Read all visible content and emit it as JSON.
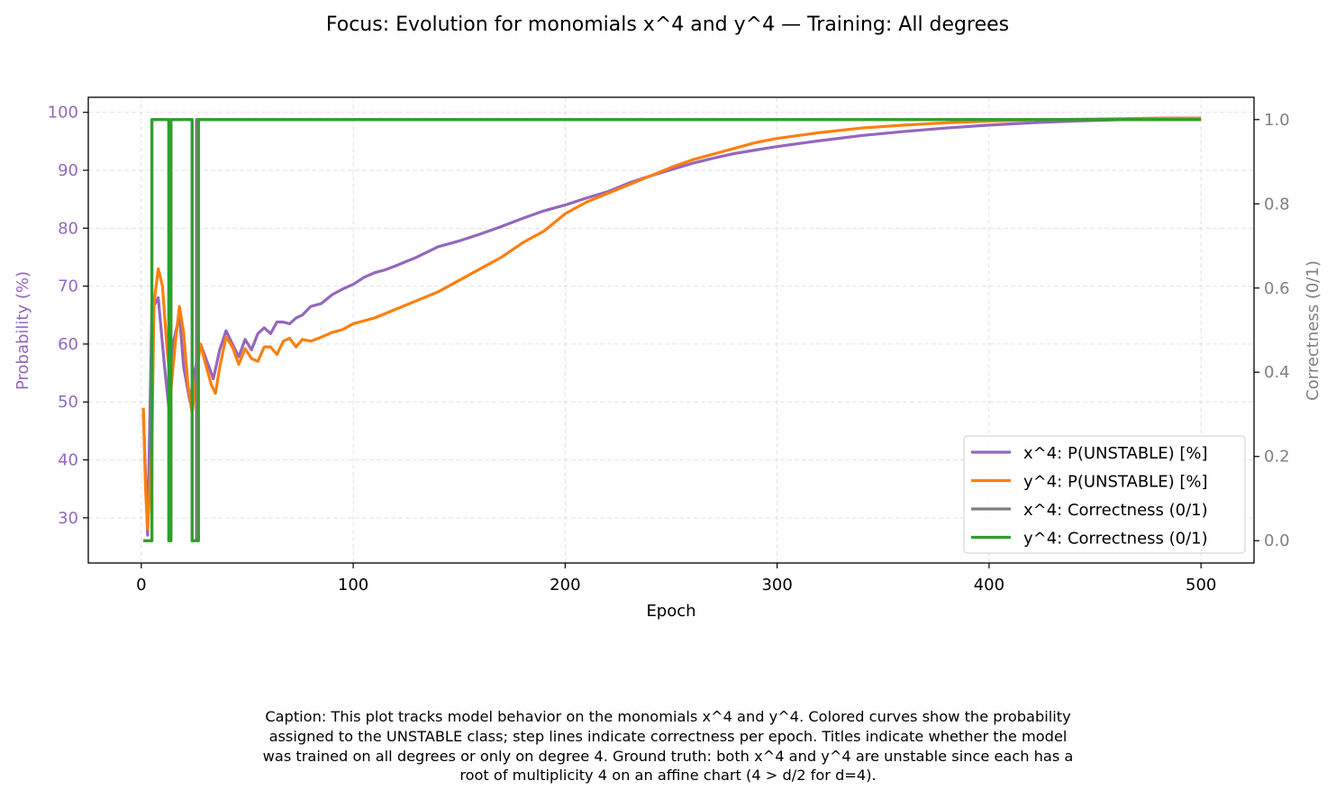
{
  "chart_data": {
    "type": "line",
    "title": "Focus: Evolution for monomials x^4 and y^4 — Training: All degrees",
    "xlabel": "Epoch",
    "ylabel_left": "Probability (%)",
    "ylabel_right": "Correctness (0/1)",
    "xlim": [
      -25,
      525
    ],
    "ylim_left": [
      22.2,
      102.6
    ],
    "ylim_right": [
      -0.053,
      1.053
    ],
    "x_ticks": [
      0,
      100,
      200,
      300,
      400,
      500
    ],
    "y_ticks_left": [
      30,
      40,
      50,
      60,
      70,
      80,
      90,
      100
    ],
    "y_ticks_right": [
      0.0,
      0.2,
      0.4,
      0.6,
      0.8,
      1.0
    ],
    "grid": true,
    "legend_position": "lower-right",
    "colors": {
      "x4_prob": "#9467bd",
      "y4_prob": "#ff7f0e",
      "x4_correct": "#7f7f7f",
      "y4_correct": "#2ca02c",
      "left_axis": "#9467bd",
      "right_axis": "#808080"
    },
    "series": [
      {
        "name": "x^4: P(UNSTABLE) [%]",
        "axis": "left",
        "color": "#9467bd",
        "x": [
          1,
          3,
          5,
          8,
          11,
          13,
          15,
          18,
          20,
          23,
          25,
          28,
          30,
          34,
          37,
          40,
          43,
          46,
          49,
          52,
          55,
          58,
          61,
          64,
          67,
          70,
          73,
          76,
          80,
          85,
          90,
          95,
          100,
          105,
          110,
          115,
          120,
          130,
          140,
          150,
          160,
          170,
          180,
          190,
          200,
          210,
          220,
          230,
          240,
          250,
          260,
          270,
          280,
          290,
          300,
          320,
          340,
          360,
          380,
          400,
          420,
          440,
          460,
          480,
          500
        ],
        "values": [
          48,
          27,
          66,
          68,
          56,
          49,
          60,
          65,
          56,
          50,
          55,
          60,
          58,
          54,
          59,
          62.3,
          60,
          57.8,
          60.8,
          59,
          61.8,
          62.8,
          61.8,
          63.8,
          63.8,
          63.5,
          64.5,
          65,
          66.5,
          67,
          68.5,
          69.5,
          70.3,
          71.5,
          72.3,
          72.8,
          73.5,
          75,
          76.8,
          77.8,
          79,
          80.3,
          81.7,
          83,
          84,
          85.2,
          86.3,
          87.8,
          89,
          90.1,
          91.2,
          92.1,
          92.9,
          93.5,
          94.1,
          95.1,
          96,
          96.7,
          97.3,
          97.8,
          98.2,
          98.5,
          98.7,
          98.9,
          99
        ]
      },
      {
        "name": "y^4: P(UNSTABLE) [%]",
        "axis": "left",
        "color": "#ff7f0e",
        "x": [
          1,
          2,
          3,
          5,
          6,
          8,
          10,
          12,
          14,
          16,
          18,
          20,
          22,
          24,
          26,
          28,
          30,
          33,
          35,
          37,
          40,
          43,
          46,
          49,
          52,
          55,
          58,
          61,
          64,
          67,
          70,
          73,
          76,
          80,
          85,
          90,
          95,
          100,
          110,
          120,
          130,
          140,
          150,
          160,
          170,
          180,
          190,
          200,
          210,
          220,
          230,
          240,
          250,
          260,
          270,
          280,
          290,
          300,
          320,
          340,
          360,
          380,
          400,
          420,
          440,
          460,
          480,
          500
        ],
        "values": [
          49,
          35,
          28,
          42,
          67,
          73,
          70,
          60,
          52,
          60,
          66.5,
          62,
          53,
          48,
          55,
          60,
          57,
          53,
          51.5,
          56,
          61.2,
          59.5,
          56.5,
          59.2,
          57.5,
          57,
          59.5,
          59.5,
          58.2,
          60.5,
          61,
          59.5,
          60.8,
          60.5,
          61.2,
          62,
          62.5,
          63.5,
          64.5,
          66,
          67.5,
          69,
          71,
          73,
          75,
          77.5,
          79.5,
          82.5,
          84.5,
          86,
          87.5,
          89,
          90.5,
          91.8,
          92.8,
          93.8,
          94.8,
          95.5,
          96.5,
          97.3,
          97.8,
          98.2,
          98.5,
          98.7,
          98.8,
          98.9,
          99,
          99
        ]
      },
      {
        "name": "x^4: Correctness (0/1)",
        "axis": "right",
        "step": true,
        "color": "#7f7f7f",
        "x": [
          1,
          5,
          13,
          14,
          24,
          26,
          500
        ],
        "values": [
          0,
          1,
          0,
          1,
          0,
          1,
          1
        ]
      },
      {
        "name": "y^4: Correctness (0/1)",
        "axis": "right",
        "step": true,
        "color": "#2ca02c",
        "x": [
          1,
          5,
          13,
          14,
          24,
          27,
          500
        ],
        "values": [
          0,
          1,
          0,
          1,
          0,
          1,
          1
        ]
      }
    ]
  },
  "caption": {
    "lines": [
      "Caption: This plot tracks model behavior on the monomials x^4 and y^4. Colored curves show the probability",
      "assigned to the UNSTABLE class; step lines indicate correctness per epoch. Titles indicate whether the model",
      "was trained on all degrees or only on degree 4. Ground truth: both x^4 and y^4 are unstable since each has a",
      "root of multiplicity 4 on an affine chart (4 > d/2 for d=4)."
    ]
  }
}
